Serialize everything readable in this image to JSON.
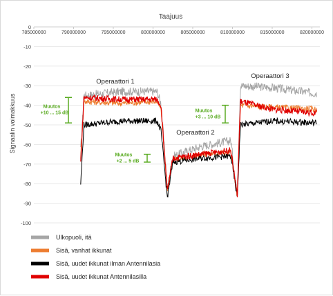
{
  "chart_data": {
    "type": "line",
    "title": "Taajuus",
    "xlabel": "",
    "ylabel": "Signaalin voimakkuus",
    "xlim": [
      785000000,
      820000000
    ],
    "ylim": [
      -100,
      0
    ],
    "x_ticks": [
      "785000000",
      "790000000",
      "795000000",
      "800000000",
      "805000000",
      "810000000",
      "815000000",
      "820000000"
    ],
    "y_ticks": [
      "0",
      "-10",
      "-20",
      "-30",
      "-40",
      "-50",
      "-60",
      "-70",
      "-80",
      "-90",
      "-100"
    ],
    "grid": "horizontal",
    "legend_position": "bottom-left",
    "series": [
      {
        "name": "Ulkopuoli, itä",
        "color": "#a6a6a6",
        "x": [
          790900000,
          791300000,
          796000000,
          800500000,
          801000000,
          801800000,
          802500000,
          806000000,
          809800000,
          810600000,
          811000000,
          815000000,
          820600000
        ],
        "values": [
          -63,
          -35,
          -33,
          -33,
          -39,
          -82,
          -66,
          -61,
          -58,
          -86,
          -30,
          -31,
          -34
        ]
      },
      {
        "name": "Sisä, vanhat ikkunat",
        "color": "#ed7d31",
        "x": [
          790900000,
          791300000,
          796000000,
          800500000,
          801000000,
          801800000,
          802500000,
          806000000,
          809800000,
          810600000,
          811000000,
          815000000,
          820600000
        ],
        "values": [
          -66,
          -38,
          -39,
          -38,
          -42,
          -83,
          -68,
          -65,
          -64,
          -86,
          -40,
          -41,
          -42
        ]
      },
      {
        "name": "Sisä, uudet ikkunat ilman Antennilasia",
        "color": "#000000",
        "x": [
          790900000,
          791300000,
          796000000,
          800500000,
          801000000,
          801800000,
          802500000,
          806000000,
          809800000,
          810600000,
          811000000,
          815000000,
          820600000
        ],
        "values": [
          -80,
          -50,
          -48,
          -48,
          -53,
          -87,
          -69,
          -67,
          -66,
          -87,
          -50,
          -48,
          -49
        ]
      },
      {
        "name": "Sisä, uudet ikkunat Antennilasilla",
        "color": "#e00000",
        "x": [
          790900000,
          791300000,
          796000000,
          800500000,
          801000000,
          801800000,
          802500000,
          806000000,
          809800000,
          810600000,
          811000000,
          815000000,
          820600000
        ],
        "values": [
          -69,
          -36,
          -37,
          -37,
          -40,
          -84,
          -67,
          -65,
          -63,
          -86,
          -38,
          -42,
          -44
        ]
      }
    ],
    "annotations": [
      {
        "text": "Operaattori 1"
      },
      {
        "text": "Operaattori 2"
      },
      {
        "text": "Operaattori 3"
      }
    ],
    "brackets": [
      {
        "label1": "Muutos",
        "label2": "+10 ... 15 dB",
        "color": "#5aab22",
        "from": -36,
        "to": -49
      },
      {
        "label1": "Muutos",
        "label2": "+2 ... 5 dB",
        "color": "#5aab22",
        "from": -65,
        "to": -69
      },
      {
        "label1": "Muutos",
        "label2": "+3 ... 10 dB",
        "color": "#5aab22",
        "from": -40,
        "to": -49
      }
    ]
  }
}
